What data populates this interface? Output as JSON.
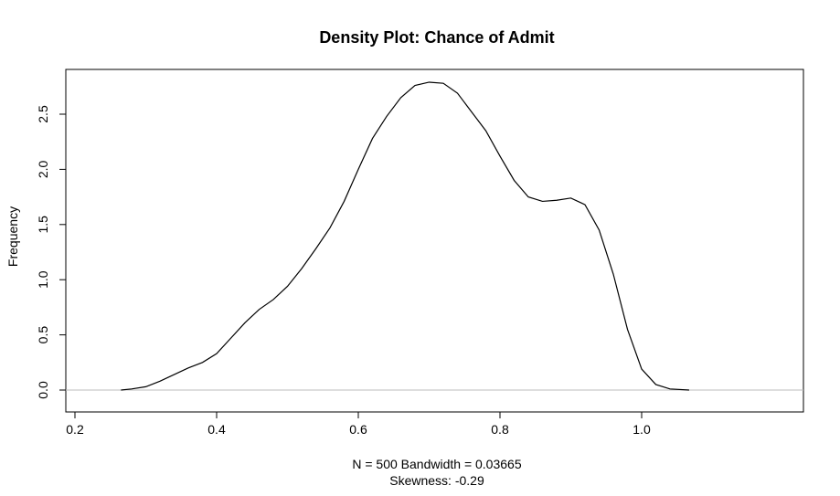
{
  "chart_data": {
    "type": "line",
    "title": "Density Plot: Chance of Admit",
    "xlabel_lines": [
      "N = 500   Bandwidth = 0.03665",
      "Skewness: -0.29"
    ],
    "ylabel": "Frequency",
    "xlim": [
      0.2,
      1.1
    ],
    "ylim": [
      0,
      2.9
    ],
    "x_ticks": [
      0.2,
      0.4,
      0.6,
      0.8,
      1.0
    ],
    "x_tick_labels": [
      "0.2",
      "0.4",
      "0.6",
      "0.8",
      "1.0"
    ],
    "y_ticks": [
      0.0,
      0.5,
      1.0,
      1.5,
      2.0,
      2.5
    ],
    "y_tick_labels": [
      "0.0",
      "0.5",
      "1.0",
      "1.5",
      "2.0",
      "2.5"
    ],
    "grid": false,
    "baseline": 0,
    "colors": {
      "line": "#000000",
      "baseline": "#bebebe",
      "frame": "#000000"
    },
    "series": [
      {
        "x": [
          0.265,
          0.28,
          0.3,
          0.32,
          0.34,
          0.36,
          0.38,
          0.4,
          0.42,
          0.44,
          0.46,
          0.48,
          0.5,
          0.52,
          0.54,
          0.56,
          0.58,
          0.6,
          0.62,
          0.64,
          0.66,
          0.68,
          0.7,
          0.72,
          0.74,
          0.76,
          0.78,
          0.8,
          0.82,
          0.84,
          0.86,
          0.88,
          0.9,
          0.92,
          0.94,
          0.96,
          0.98,
          1.0,
          1.02,
          1.04,
          1.067
        ],
        "y": [
          0.0,
          0.01,
          0.03,
          0.08,
          0.14,
          0.2,
          0.25,
          0.33,
          0.47,
          0.61,
          0.73,
          0.82,
          0.94,
          1.1,
          1.28,
          1.47,
          1.71,
          2.0,
          2.28,
          2.48,
          2.65,
          2.76,
          2.79,
          2.78,
          2.69,
          2.52,
          2.35,
          2.12,
          1.9,
          1.75,
          1.71,
          1.72,
          1.74,
          1.68,
          1.45,
          1.05,
          0.55,
          0.19,
          0.05,
          0.01,
          0.0
        ]
      }
    ]
  }
}
